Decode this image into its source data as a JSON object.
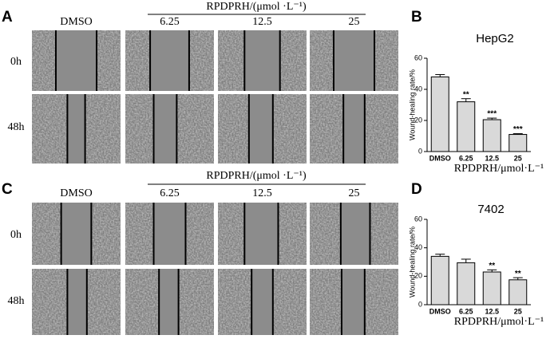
{
  "panel_labels": [
    "A",
    "B",
    "C",
    "D"
  ],
  "image_panels": [
    {
      "header": "RPDPRH/(μmol ·L⁻¹)",
      "columns": [
        "DMSO",
        "6.25",
        "12.5",
        "25"
      ],
      "rows": [
        "0h",
        "48h"
      ]
    },
    {
      "header": "RPDPRH/(μmol ·L⁻¹)",
      "columns": [
        "DMSO",
        "6.25",
        "12.5",
        "25"
      ],
      "rows": [
        "0h",
        "48h"
      ]
    }
  ],
  "chart_data": [
    {
      "type": "bar",
      "title": "HepG2",
      "y_label": "Wound-healing rate/%",
      "x_label": "RPDPRH/μmol·L⁻¹",
      "categories": [
        "DMSO",
        "6.25",
        "12.5",
        "25"
      ],
      "values": [
        48,
        32,
        20.5,
        11
      ],
      "errors": [
        1.5,
        2,
        1,
        0.5
      ],
      "annotations": [
        null,
        "**",
        "***",
        "***"
      ],
      "color": "#d9d9d9",
      "ylim": [
        0,
        60
      ],
      "yticks": [
        0,
        20,
        40,
        60
      ]
    },
    {
      "type": "bar",
      "title": "7402",
      "y_label": "Wound-healing rate/%",
      "x_label": "RPDPRH/μmol·L⁻¹",
      "categories": [
        "DMSO",
        "6.25",
        "12.5",
        "25"
      ],
      "values": [
        34,
        29.5,
        23,
        17.5
      ],
      "errors": [
        1.5,
        2.5,
        1.5,
        1.5
      ],
      "annotations": [
        null,
        null,
        "**",
        "**"
      ],
      "color": "#d9d9d9",
      "ylim": [
        0,
        60
      ],
      "yticks": [
        0,
        20,
        40,
        60
      ]
    }
  ]
}
